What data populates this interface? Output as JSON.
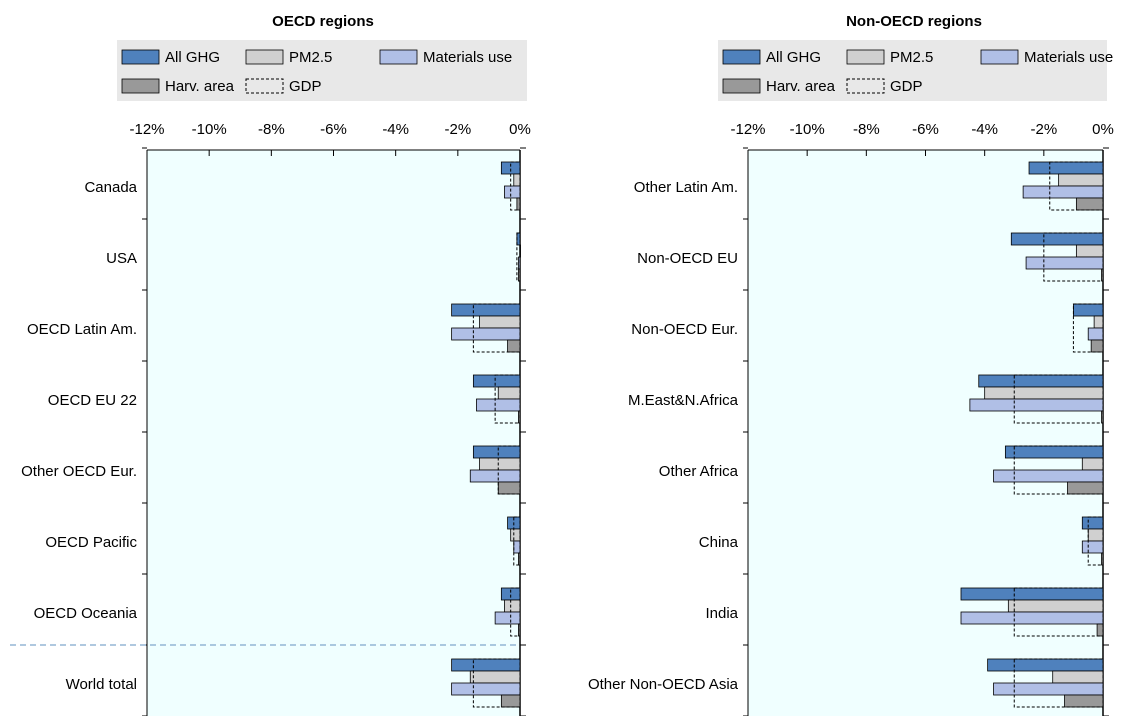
{
  "colors": {
    "all_ghg": "#4f81bd",
    "pm25": "#d0d0d0",
    "materials_use": "#b0bfe6",
    "harv_area": "#999999",
    "gdp_outline": "#000000",
    "panel_bg": "#f0ffff",
    "legend_bg": "#e8e8e8",
    "separator": "#7fa8cc"
  },
  "legend": {
    "items": [
      {
        "key": "all_ghg",
        "label": "All GHG"
      },
      {
        "key": "pm25",
        "label": "PM2.5"
      },
      {
        "key": "materials_use",
        "label": "Materials use"
      },
      {
        "key": "harv_area",
        "label": "Harv. area"
      },
      {
        "key": "gdp",
        "label": "GDP"
      }
    ]
  },
  "chart_data": [
    {
      "type": "bar",
      "orientation": "horizontal",
      "title": "OECD regions",
      "xlim": [
        -12,
        0
      ],
      "x_ticks": [
        "-12%",
        "-10%",
        "-8%",
        "-6%",
        "-4%",
        "-2%",
        "0%"
      ],
      "categories": [
        "Canada",
        "USA",
        "OECD Latin Am.",
        "OECD EU 22",
        "Other OECD Eur.",
        "OECD Pacific",
        "OECD Oceania",
        "World total"
      ],
      "separator_before": "World total",
      "series": [
        {
          "name": "All GHG",
          "key": "all_ghg",
          "values": [
            -0.6,
            -0.1,
            -2.2,
            -1.5,
            -1.5,
            -0.4,
            -0.6,
            -2.2
          ]
        },
        {
          "name": "PM2.5",
          "key": "pm25",
          "values": [
            -0.2,
            0.0,
            -1.3,
            -0.7,
            -1.3,
            -0.3,
            -0.5,
            -1.6
          ]
        },
        {
          "name": "Materials use",
          "key": "materials_use",
          "values": [
            -0.5,
            -0.05,
            -2.2,
            -1.4,
            -1.6,
            -0.2,
            -0.8,
            -2.2
          ]
        },
        {
          "name": "Harv. area",
          "key": "harv_area",
          "values": [
            -0.1,
            -0.05,
            -0.4,
            -0.05,
            -0.7,
            -0.05,
            -0.05,
            -0.6
          ]
        },
        {
          "name": "GDP",
          "key": "gdp",
          "values": [
            -0.3,
            -0.1,
            -1.5,
            -0.8,
            -0.7,
            -0.2,
            -0.3,
            -1.5
          ]
        }
      ]
    },
    {
      "type": "bar",
      "orientation": "horizontal",
      "title": "Non-OECD regions",
      "xlim": [
        -12,
        0
      ],
      "x_ticks": [
        "-12%",
        "-10%",
        "-8%",
        "-6%",
        "-4%",
        "-2%",
        "0%"
      ],
      "categories": [
        "Other Latin Am.",
        "Non-OECD EU",
        "Non-OECD Eur.",
        "M.East&N.Africa",
        "Other Africa",
        "China",
        "India",
        "Other Non-OECD Asia"
      ],
      "series": [
        {
          "name": "All GHG",
          "key": "all_ghg",
          "values": [
            -2.5,
            -3.1,
            -1.0,
            -4.2,
            -3.3,
            -0.7,
            -4.8,
            -3.9
          ]
        },
        {
          "name": "PM2.5",
          "key": "pm25",
          "values": [
            -1.5,
            -0.9,
            -0.3,
            -4.0,
            -0.7,
            -0.5,
            -3.2,
            -1.7
          ]
        },
        {
          "name": "Materials use",
          "key": "materials_use",
          "values": [
            -2.7,
            -2.6,
            -0.5,
            -4.5,
            -3.7,
            -0.7,
            -4.8,
            -3.7
          ]
        },
        {
          "name": "Harv. area",
          "key": "harv_area",
          "values": [
            -0.9,
            -0.05,
            -0.4,
            -0.05,
            -1.2,
            -0.05,
            -0.2,
            -1.3
          ]
        },
        {
          "name": "GDP",
          "key": "gdp",
          "values": [
            -1.8,
            -2.0,
            -1.0,
            -3.0,
            -3.0,
            -0.5,
            -3.0,
            -3.0
          ]
        }
      ]
    }
  ]
}
